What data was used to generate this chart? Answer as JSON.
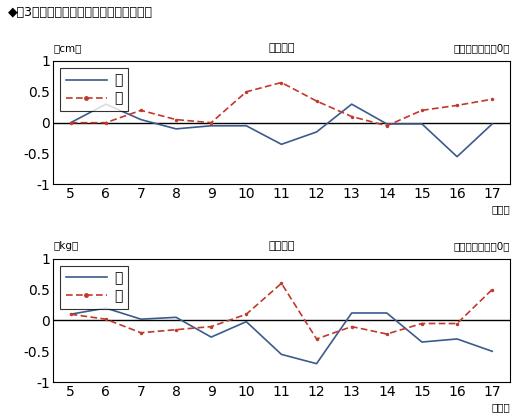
{
  "title": "◆噳3　身長・体重平均値の全国との比較",
  "ages": [
    5,
    6,
    7,
    8,
    9,
    10,
    11,
    12,
    13,
    14,
    15,
    16,
    17
  ],
  "height_male": [
    0.0,
    0.3,
    0.05,
    -0.1,
    -0.05,
    -0.05,
    -0.35,
    -0.15,
    0.3,
    -0.02,
    -0.02,
    -0.55,
    -0.02
  ],
  "height_female": [
    0.0,
    0.0,
    0.2,
    0.05,
    0.0,
    0.5,
    0.65,
    0.35,
    0.1,
    -0.05,
    0.2,
    0.28,
    0.38
  ],
  "weight_male": [
    0.1,
    0.2,
    0.02,
    0.05,
    -0.27,
    -0.02,
    -0.55,
    -0.7,
    0.12,
    0.12,
    -0.35,
    -0.3,
    -0.5
  ],
  "weight_female": [
    0.1,
    0.02,
    -0.2,
    -0.15,
    -0.1,
    0.1,
    0.6,
    -0.3,
    -0.1,
    -0.22,
    -0.05,
    -0.05,
    0.5
  ],
  "male_color": "#3c5a8c",
  "female_color": "#c0392b",
  "bg_color": "#ffffff",
  "ylim": [
    -1,
    1
  ],
  "yticks": [
    -1,
    -0.5,
    0,
    0.5,
    1
  ],
  "ytick_labels": [
    "-1",
    "-0.5",
    "0",
    "0.5",
    "1"
  ],
  "height_unit_label": "（cm）",
  "weight_unit_label": "（kg）",
  "height_center_label": "（身長）",
  "weight_center_label": "（体重）",
  "national_avg_label": "（全国平均値＝0）",
  "age_label": "（歳）",
  "legend_male": "男",
  "legend_female": "女"
}
